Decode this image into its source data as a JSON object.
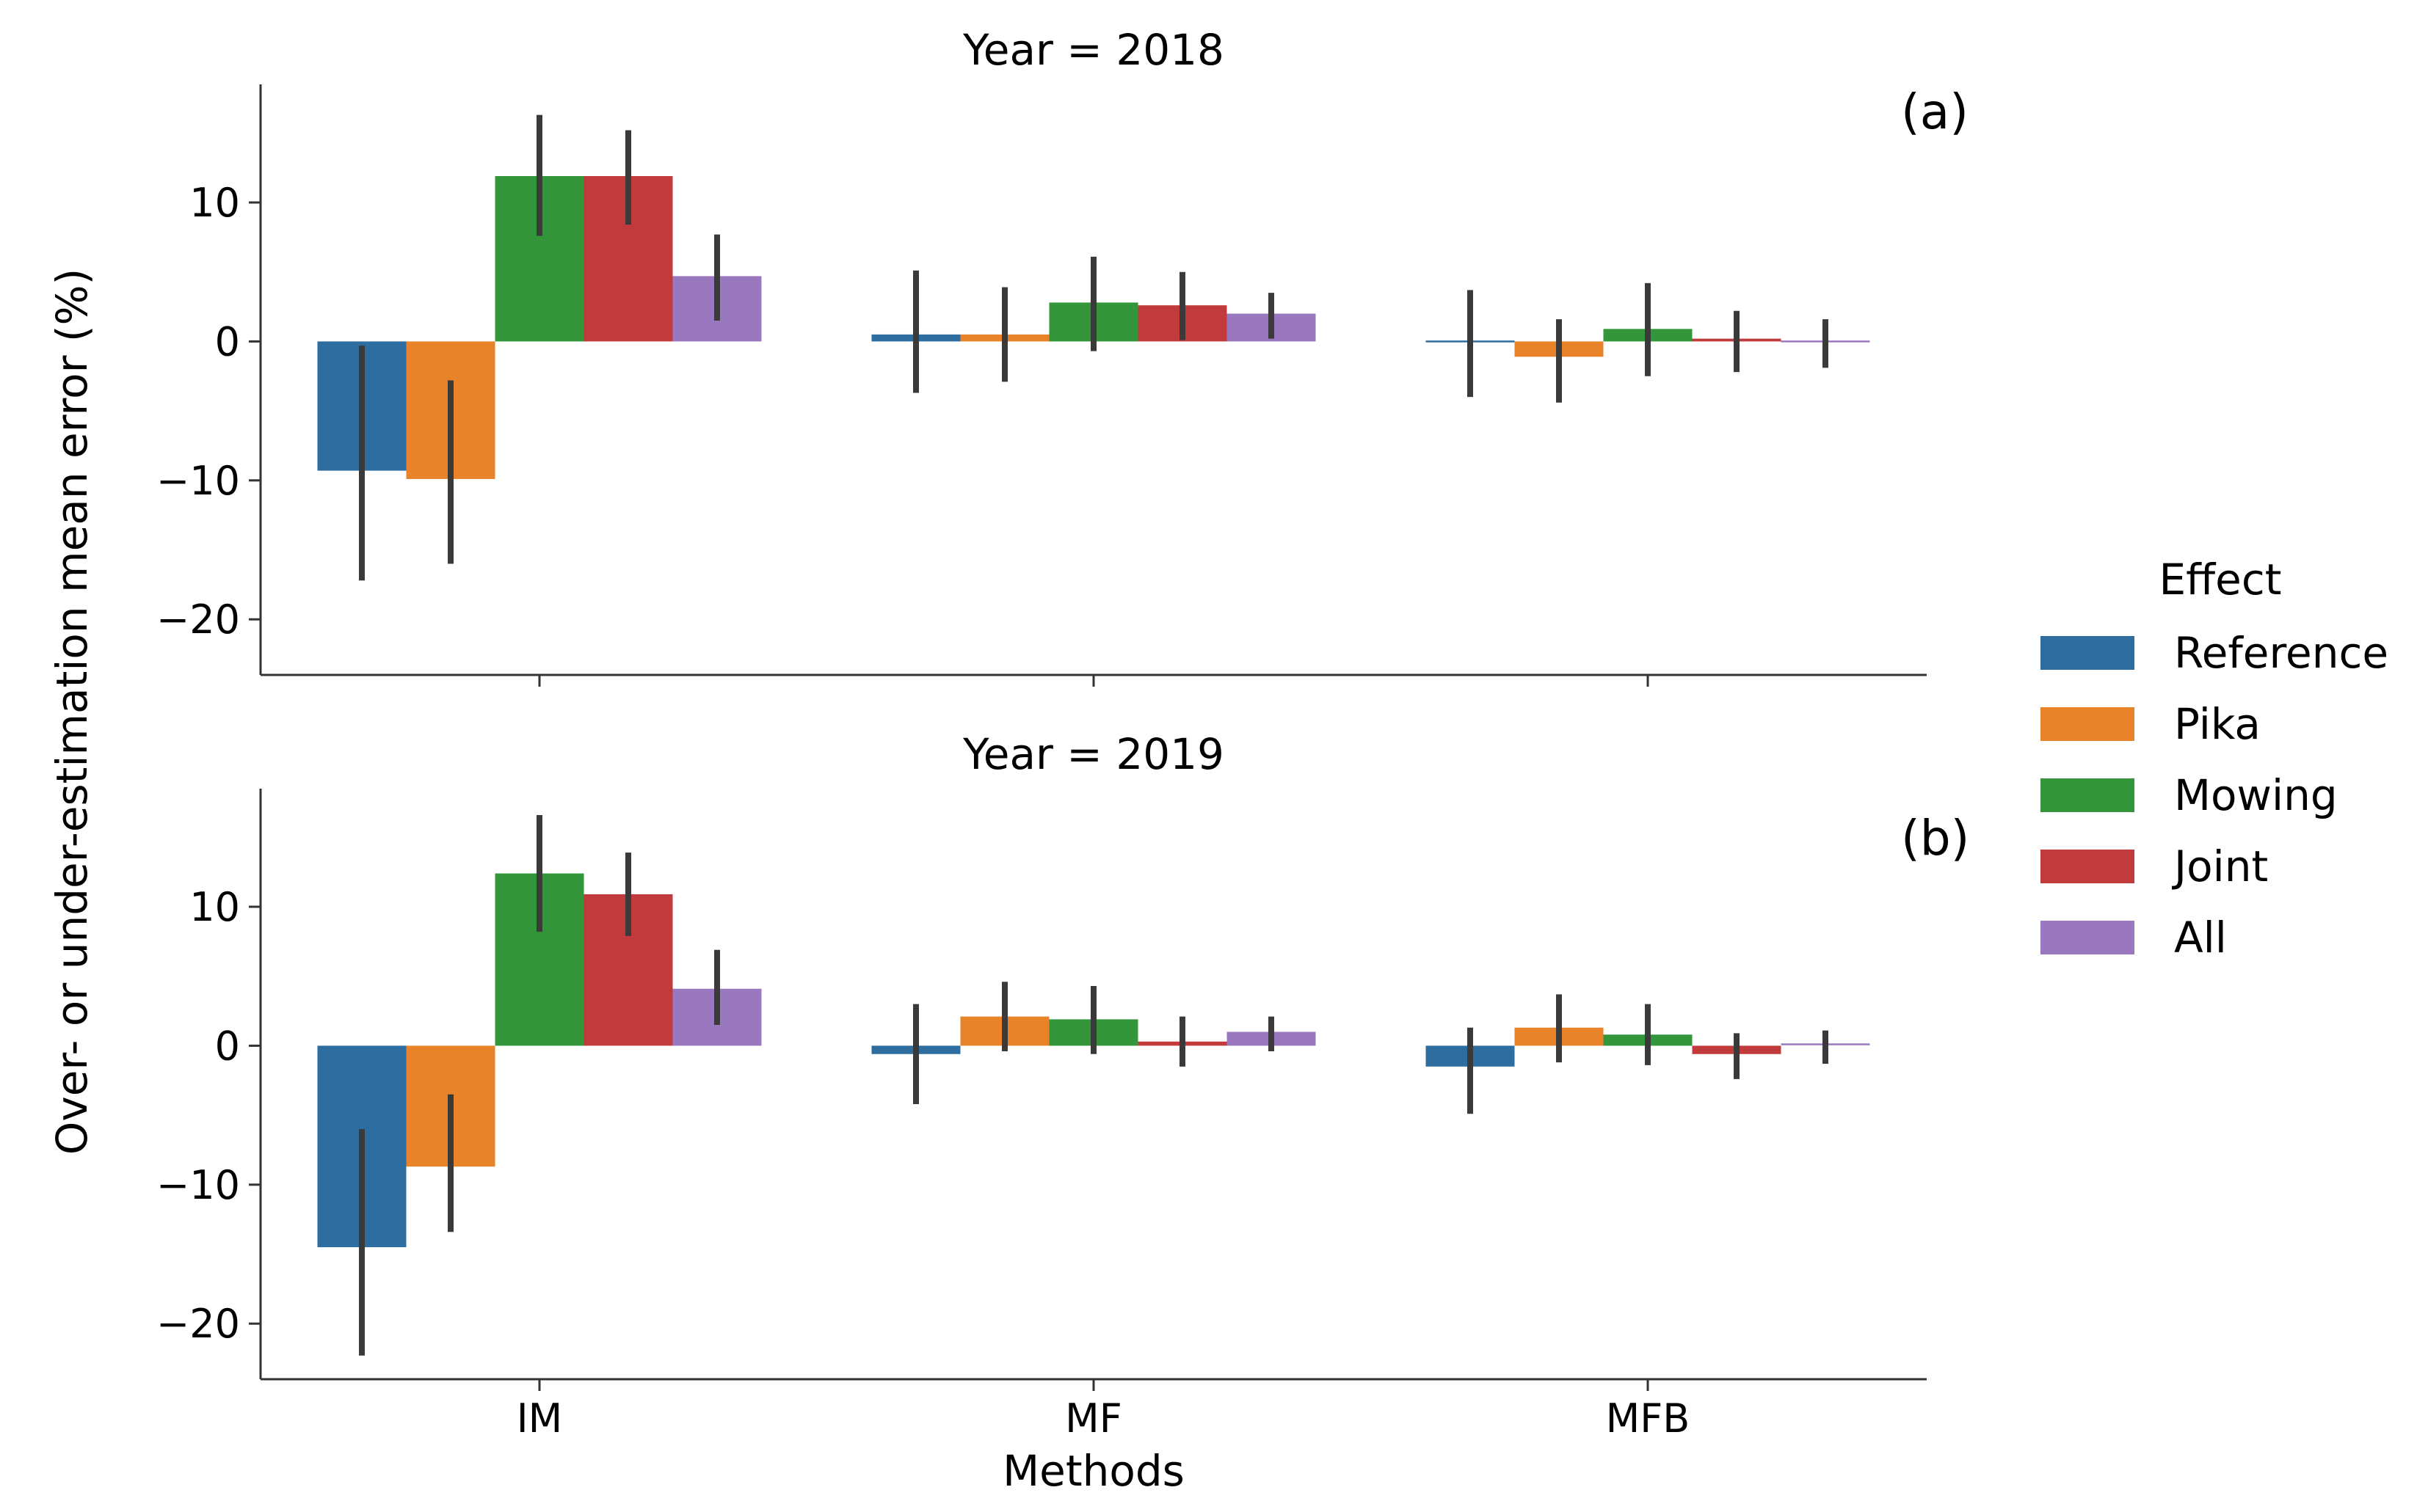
{
  "chart_data": [
    {
      "type": "bar",
      "title": "Year = 2018",
      "panel_label": "(a)",
      "categories": [
        "IM",
        "MF",
        "MFB"
      ],
      "ylim": [
        -24,
        18.5
      ],
      "yticks": [
        -20,
        -10,
        0,
        10
      ],
      "ytick_labels": [
        "−20",
        "−10",
        "0",
        "10"
      ],
      "series": [
        {
          "name": "Reference",
          "values": [
            -9.3,
            0.5,
            0.0
          ],
          "ci_low": [
            -17.2,
            -3.7,
            -4.0
          ],
          "ci_high": [
            -0.3,
            5.1,
            3.7
          ]
        },
        {
          "name": "Pika",
          "values": [
            -9.9,
            0.5,
            -1.1
          ],
          "ci_low": [
            -16.0,
            -2.9,
            -4.4
          ],
          "ci_high": [
            -2.8,
            3.9,
            1.6
          ]
        },
        {
          "name": "Mowing",
          "values": [
            11.9,
            2.8,
            0.9
          ],
          "ci_low": [
            7.6,
            -0.7,
            -2.5
          ],
          "ci_high": [
            16.3,
            6.1,
            4.2
          ]
        },
        {
          "name": "Joint",
          "values": [
            11.9,
            2.6,
            0.2
          ],
          "ci_low": [
            8.4,
            0.1,
            -2.2
          ],
          "ci_high": [
            15.2,
            5.0,
            2.2
          ]
        },
        {
          "name": "All",
          "values": [
            4.7,
            2.0,
            0.0
          ],
          "ci_low": [
            1.5,
            0.2,
            -1.9
          ],
          "ci_high": [
            7.7,
            3.5,
            1.6
          ]
        }
      ]
    },
    {
      "type": "bar",
      "title": "Year = 2019",
      "panel_label": "(b)",
      "categories": [
        "IM",
        "MF",
        "MFB"
      ],
      "ylim": [
        -24,
        18.5
      ],
      "yticks": [
        -20,
        -10,
        0,
        10
      ],
      "ytick_labels": [
        "−20",
        "−10",
        "0",
        "10"
      ],
      "series": [
        {
          "name": "Reference",
          "values": [
            -14.5,
            -0.6,
            -1.5
          ],
          "ci_low": [
            -22.3,
            -4.2,
            -4.9
          ],
          "ci_high": [
            -6.0,
            3.0,
            1.3
          ]
        },
        {
          "name": "Pika",
          "values": [
            -8.7,
            2.1,
            1.3
          ],
          "ci_low": [
            -13.4,
            -0.4,
            -1.2
          ],
          "ci_high": [
            -3.5,
            4.6,
            3.7
          ]
        },
        {
          "name": "Mowing",
          "values": [
            12.4,
            1.9,
            0.8
          ],
          "ci_low": [
            8.2,
            -0.6,
            -1.4
          ],
          "ci_high": [
            16.6,
            4.3,
            3.0
          ]
        },
        {
          "name": "Joint",
          "values": [
            10.9,
            0.3,
            -0.6
          ],
          "ci_low": [
            7.9,
            -1.5,
            -2.4
          ],
          "ci_high": [
            13.9,
            2.1,
            0.9
          ]
        },
        {
          "name": "All",
          "values": [
            4.1,
            1.0,
            0.1
          ],
          "ci_low": [
            1.5,
            -0.4,
            -1.3
          ],
          "ci_high": [
            6.9,
            2.1,
            1.1
          ]
        }
      ]
    }
  ],
  "axes": {
    "xlabel": "Methods",
    "ylabel": "Over- or under-estimation mean error (%)"
  },
  "legend": {
    "title": "Effect",
    "placement": "right",
    "items": [
      "Reference",
      "Pika",
      "Mowing",
      "Joint",
      "All"
    ]
  },
  "colors": {
    "Reference": "#2d6da0",
    "Pika": "#e8832a",
    "Mowing": "#33963a",
    "Joint": "#c23b3c",
    "All": "#9a78bf",
    "errorbar": "#3a3a3a",
    "axis": "#333333"
  }
}
